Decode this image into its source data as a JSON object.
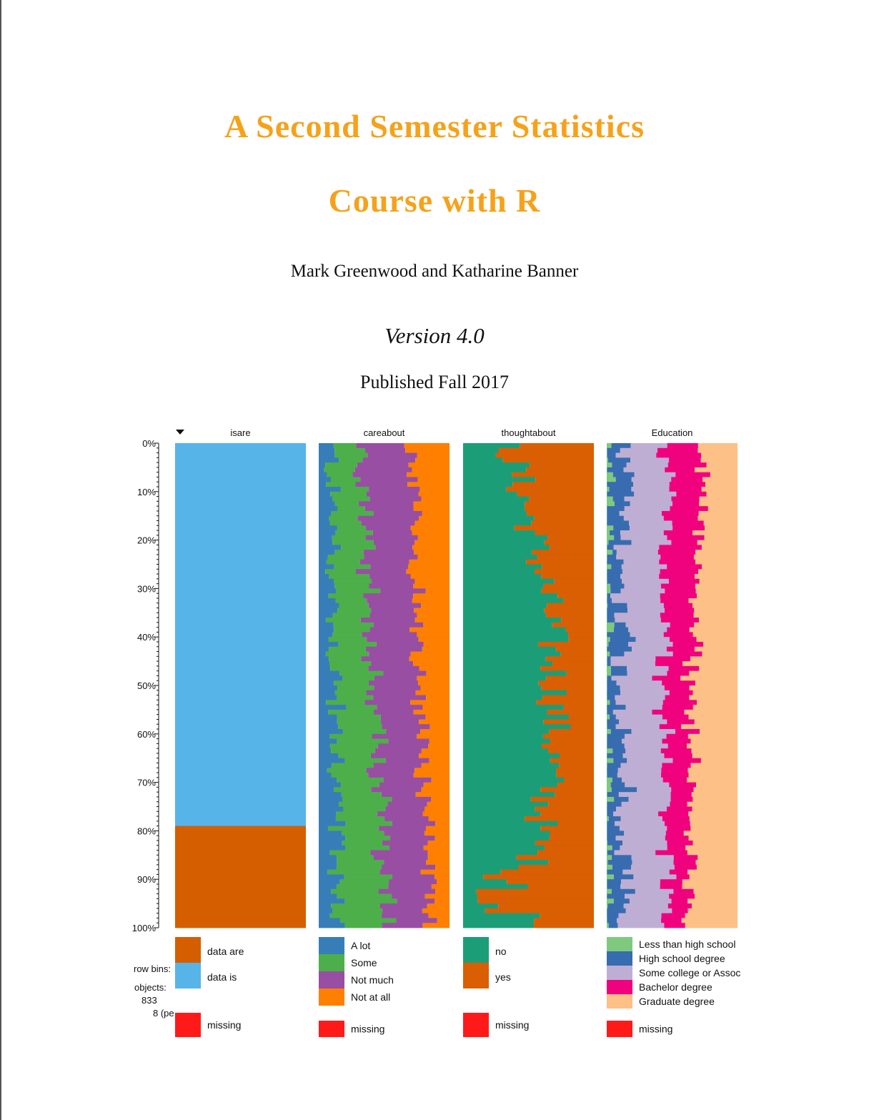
{
  "book": {
    "title_line1": "A Second Semester Statistics",
    "title_line2": "Course with R",
    "authors": "Mark Greenwood and Katharine Banner",
    "version": "Version 4.0",
    "published": "Published Fall 2017"
  },
  "chart_data": {
    "type": "tableplot",
    "ylabels": [
      "0%",
      "10%",
      "20%",
      "30%",
      "40%",
      "50%",
      "60%",
      "70%",
      "80%",
      "90%",
      "100%"
    ],
    "sort_indicator": "sorted by isare (descending)",
    "info": {
      "row_bins_label": "row bins:",
      "objects_label": "objects:",
      "objects_value": "833",
      "per_bin": "8 (pe"
    },
    "missing_label": "missing",
    "columns": [
      {
        "name": "isare",
        "categories": [
          {
            "label": "data are",
            "color": "#d55e00"
          },
          {
            "label": "data is",
            "color": "#56b4e9"
          }
        ],
        "fractions": [
          0.2,
          0.8
        ]
      },
      {
        "name": "careabout",
        "categories": [
          {
            "label": "A lot",
            "color": "#377eb8"
          },
          {
            "label": "Some",
            "color": "#4daf4a"
          },
          {
            "label": "Not much",
            "color": "#984ea3"
          },
          {
            "label": "Not at all",
            "color": "#ff7f00"
          }
        ],
        "fractions": [
          0.1,
          0.27,
          0.37,
          0.26
        ]
      },
      {
        "name": "thoughtabout",
        "categories": [
          {
            "label": "no",
            "color": "#1b9e77"
          },
          {
            "label": "yes",
            "color": "#d95f02"
          }
        ],
        "fractions": [
          0.5,
          0.5
        ]
      },
      {
        "name": "Education",
        "categories": [
          {
            "label": "Less than high school",
            "color": "#7fc97f"
          },
          {
            "label": "High school degree",
            "color": "#386cb0"
          },
          {
            "label": "Some college or Assoc",
            "color": "#beaed4"
          },
          {
            "label": "Bachelor degree",
            "color": "#f0027f"
          },
          {
            "label": "Graduate degree",
            "color": "#fdc086"
          }
        ],
        "fractions": [
          0.01,
          0.09,
          0.33,
          0.27,
          0.3
        ]
      }
    ],
    "missing_color": "#ff1a1a"
  }
}
